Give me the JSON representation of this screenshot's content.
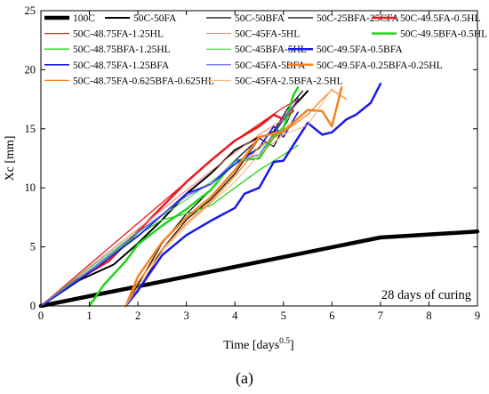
{
  "chart_data": {
    "type": "line",
    "xlabel": "Time [days",
    "xlabel_sup": "0.5",
    "xlabel_end": "]",
    "ylabel": "Xc [mm]",
    "xlim": [
      0,
      9
    ],
    "ylim": [
      0,
      25
    ],
    "xticks": [
      0,
      1,
      2,
      3,
      4,
      5,
      6,
      7,
      8,
      9
    ],
    "yticks": [
      0,
      5,
      10,
      15,
      20,
      25
    ],
    "grid": false,
    "legend_position": "top-left",
    "annotation": "28 days of curing",
    "caption": "(a)",
    "series": [
      {
        "name": "100C",
        "color": "#000000",
        "width": 4.5,
        "x": [
          0,
          7,
          9
        ],
        "y": [
          0,
          5.8,
          6.3
        ]
      },
      {
        "name": "50C-50FA",
        "color": "#000000",
        "width": 2,
        "x": [
          0,
          0.8,
          1.5,
          2,
          2.5,
          3,
          3.5,
          4,
          4.5,
          4.8,
          5.1,
          5.3,
          5.5
        ],
        "y": [
          0,
          2.2,
          3.5,
          5.3,
          7.3,
          9.5,
          11.2,
          13.2,
          14.3,
          14.6,
          16.4,
          17.3,
          18.2
        ]
      },
      {
        "name": "50C-50BFA",
        "color": "#000000",
        "width": 1.2,
        "x": [
          1.75,
          2,
          2.5,
          3,
          3.5,
          4,
          4.5,
          4.8,
          5.1,
          5.3
        ],
        "y": [
          0,
          1.2,
          4.8,
          7.3,
          9,
          11.2,
          14.2,
          13.5,
          15.8,
          17.6
        ]
      },
      {
        "name": "50C-25BFA-25CFA",
        "color": "#000000",
        "width": 1.2,
        "x": [
          1.75,
          2,
          2.5,
          3,
          3.5,
          4,
          4.5,
          4.8,
          5.1,
          5.4
        ],
        "y": [
          0,
          1.8,
          5.3,
          7.8,
          9.8,
          12.3,
          14.2,
          14.8,
          16.8,
          18.2
        ]
      },
      {
        "name": "50C-49.5FA-0.5HL",
        "color": "#e8191e",
        "width": 2.5,
        "x": [
          0,
          0.7,
          1.4,
          2,
          2.5,
          3,
          3.5,
          4,
          4.5,
          4.8,
          5,
          5.2
        ],
        "y": [
          0,
          2.1,
          3.8,
          6.3,
          8.4,
          10.5,
          12.3,
          14,
          15.2,
          16.2,
          15.8,
          16.5
        ]
      },
      {
        "name": "50C-48.75FA-1.25HL",
        "color": "#e8191e",
        "width": 1.3,
        "x": [
          0,
          1,
          2,
          3,
          4,
          4.5,
          5,
          5.3
        ],
        "y": [
          0,
          3.5,
          7,
          10.5,
          14,
          15.4,
          16.8,
          17.5
        ]
      },
      {
        "name": "50C-45FA-5HL",
        "color": "#f4837d",
        "width": 1.1,
        "x": [
          0,
          1,
          2,
          3,
          4,
          4.5,
          5,
          5.3
        ],
        "y": [
          0,
          3.3,
          6.5,
          9.8,
          13,
          14.5,
          15.8,
          17.2
        ]
      },
      {
        "name": "50C-49.5BFA-0.5HL",
        "color": "#22d31a",
        "width": 2.5,
        "x": [
          1,
          1.3,
          1.75,
          2,
          2.5,
          3,
          3.5,
          4,
          4.5,
          4.8,
          5,
          5.2,
          5.3
        ],
        "y": [
          0,
          1.8,
          3.8,
          5.2,
          6.8,
          8.2,
          9.8,
          12.3,
          12.5,
          14.3,
          15,
          17.8,
          18.5
        ]
      },
      {
        "name": "50C-48.75BFA-1.25HL",
        "color": "#22d31a",
        "width": 1.3,
        "x": [
          0,
          0.5,
          1,
          1.5,
          2,
          2.5,
          3,
          3.5,
          4,
          4.5,
          5,
          5.3
        ],
        "y": [
          0,
          1.5,
          3,
          4.5,
          6,
          7.3,
          7.8,
          8.5,
          10,
          11.5,
          12.8,
          13.6
        ]
      },
      {
        "name": "50C-45BFA-5HL",
        "color": "#22d31a",
        "width": 0.8,
        "x": [
          0,
          1,
          2,
          3,
          4,
          4.5,
          5,
          5.2
        ],
        "y": [
          0,
          3.2,
          6.3,
          9,
          12,
          13.3,
          15.2,
          16.5
        ]
      },
      {
        "name": "50C-49.5FA-0.5BFA",
        "color": "#1a1ae8",
        "width": 2.5,
        "x": [
          1.75,
          2,
          2.5,
          3,
          3.5,
          4,
          4.2,
          4.5,
          4.8,
          5,
          5.2,
          5.5,
          5.8,
          6,
          6.3,
          6.5,
          6.8,
          7
        ],
        "y": [
          0,
          1.3,
          4.3,
          6,
          7.2,
          8.3,
          9.5,
          10,
          12.2,
          12.3,
          13.6,
          15.5,
          14.5,
          14.7,
          15.8,
          16.2,
          17.2,
          18.8
        ]
      },
      {
        "name": "50C-48.75FA-1.25BFA",
        "color": "#1a1ae8",
        "width": 1.7,
        "x": [
          0,
          1,
          2,
          3,
          3.5,
          4,
          4.5,
          4.8,
          5,
          5.3
        ],
        "y": [
          0,
          2.8,
          5.9,
          9.5,
          10.3,
          12,
          13.4,
          15.2,
          14.3,
          16.4
        ]
      },
      {
        "name": "50C-45FA-5BFA",
        "color": "#5b5bf2",
        "width": 1.2,
        "x": [
          0,
          1,
          2,
          3,
          3.5,
          4,
          4.5,
          5,
          5.3
        ],
        "y": [
          0,
          3,
          6.2,
          9.3,
          10.3,
          12.3,
          12.8,
          15.8,
          17.5
        ]
      },
      {
        "name": "50C-49.5FA-0.25BFA-0.25HL",
        "color": "#f5821f",
        "width": 2.5,
        "x": [
          1.75,
          2,
          2.5,
          3,
          3.5,
          4,
          4.5,
          5,
          5.5,
          5.8,
          6,
          6.2
        ],
        "y": [
          0,
          2.5,
          5.4,
          7.5,
          9.2,
          11.5,
          14.3,
          14.8,
          16.6,
          16.5,
          15.2,
          18.5
        ]
      },
      {
        "name": "50C-48.75FA-0.625BFA-0.625HL",
        "color": "#f5821f",
        "width": 1.3,
        "x": [
          1.75,
          2,
          2.5,
          3,
          3.5,
          4,
          4.5,
          5,
          5.5,
          5.8,
          6,
          6.3
        ],
        "y": [
          0,
          2,
          4.8,
          7,
          8.8,
          11,
          13.5,
          14.7,
          16.2,
          17.5,
          18.3,
          17.5
        ]
      },
      {
        "name": "50C-45FA-2.5BFA-2.5HL",
        "color": "#f5b07a",
        "width": 1,
        "x": [
          1.75,
          2,
          2.5,
          3,
          3.5,
          4,
          4.5,
          5,
          5.5,
          6
        ],
        "y": [
          0,
          1.6,
          4.6,
          6.8,
          8.7,
          10.5,
          12.8,
          14.5,
          15.3,
          18.4
        ]
      }
    ]
  }
}
